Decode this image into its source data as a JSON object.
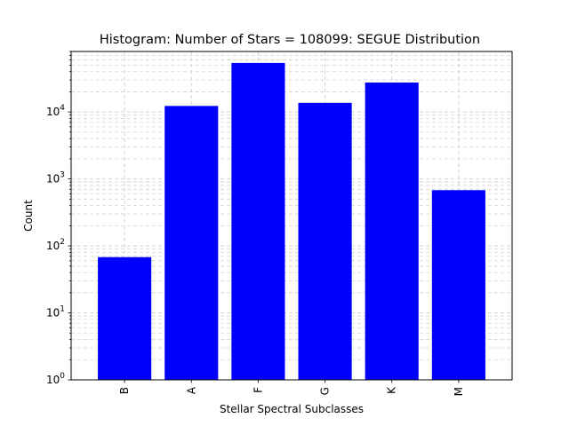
{
  "chart_data": {
    "type": "bar",
    "title": "Histogram: Number of Stars = 108099: SEGUE Distribution",
    "xlabel": "Stellar Spectral Subclasses",
    "ylabel": "Count",
    "categories": [
      "B",
      "A",
      "F",
      "G",
      "K",
      "M"
    ],
    "values": [
      68,
      12300,
      54000,
      13700,
      27500,
      680
    ],
    "yscale": "log",
    "ylim": [
      1,
      80000
    ],
    "yticks": [
      {
        "base": "10",
        "exp": "0"
      },
      {
        "base": "10",
        "exp": "1"
      },
      {
        "base": "10",
        "exp": "2"
      },
      {
        "base": "10",
        "exp": "3"
      },
      {
        "base": "10",
        "exp": "4"
      }
    ],
    "xtick_rotation": 90,
    "grid": true,
    "bar_color": "#0000ff",
    "grid_color": "#d3d3d3"
  }
}
